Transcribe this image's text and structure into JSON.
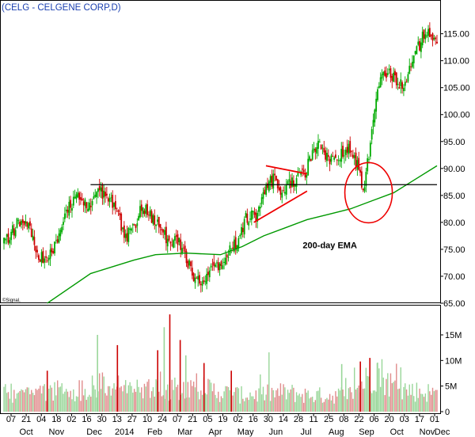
{
  "chart_data": [
    {
      "type": "candlestick",
      "title": "(CELG - CELGENE CORP,D)",
      "watermark": "©Signal,",
      "y_axis_side": "right",
      "ylim": [
        65,
        117
      ],
      "y_ticks": [
        "115.00",
        "110.00",
        "105.00",
        "100.00",
        "95.00",
        "90.00",
        "85.00",
        "80.00",
        "75.00",
        "70.00",
        "65.00"
      ],
      "y_tick_values": [
        115,
        110,
        105,
        100,
        95,
        90,
        85,
        80,
        75,
        70,
        65
      ],
      "x_ticks": [
        "07",
        "21",
        "04",
        "18",
        "02",
        "16",
        "30",
        "13",
        "27",
        "10",
        "24",
        "07",
        "21",
        "05",
        "19",
        "02",
        "16",
        "30",
        "14",
        "28",
        "11",
        "25",
        "08",
        "22",
        "06",
        "20",
        "03",
        "17",
        "01"
      ],
      "x_month_labels": [
        "Oct",
        "Nov",
        "Dec",
        "2014",
        "Feb",
        "Mar",
        "Apr",
        "May",
        "Jun",
        "Jul",
        "Aug",
        "Sep",
        "Oct",
        "Nov",
        "Dec"
      ],
      "price_path": [
        [
          0,
          76.5
        ],
        [
          0.03,
          79.5
        ],
        [
          0.06,
          79
        ],
        [
          0.08,
          74
        ],
        [
          0.1,
          73
        ],
        [
          0.12,
          76
        ],
        [
          0.15,
          82.5
        ],
        [
          0.17,
          85
        ],
        [
          0.19,
          83.5
        ],
        [
          0.21,
          84
        ],
        [
          0.22,
          86
        ],
        [
          0.24,
          84.5
        ],
        [
          0.27,
          80
        ],
        [
          0.28,
          77
        ],
        [
          0.3,
          79
        ],
        [
          0.32,
          83
        ],
        [
          0.34,
          81
        ],
        [
          0.36,
          79
        ],
        [
          0.38,
          76
        ],
        [
          0.4,
          77
        ],
        [
          0.42,
          73
        ],
        [
          0.44,
          70
        ],
        [
          0.46,
          69
        ],
        [
          0.48,
          71
        ],
        [
          0.5,
          72
        ],
        [
          0.52,
          74.5
        ],
        [
          0.54,
          77
        ],
        [
          0.56,
          81
        ],
        [
          0.58,
          81
        ],
        [
          0.6,
          86
        ],
        [
          0.62,
          88
        ],
        [
          0.64,
          86
        ],
        [
          0.66,
          87
        ],
        [
          0.68,
          88
        ],
        [
          0.7,
          90
        ],
        [
          0.72,
          94.5
        ],
        [
          0.74,
          93
        ],
        [
          0.76,
          91
        ],
        [
          0.78,
          92.5
        ],
        [
          0.8,
          94
        ],
        [
          0.82,
          90
        ],
        [
          0.83,
          84.5
        ],
        [
          0.84,
          91
        ],
        [
          0.86,
          104
        ],
        [
          0.88,
          108
        ],
        [
          0.9,
          107
        ],
        [
          0.92,
          105
        ],
        [
          0.94,
          109
        ],
        [
          0.96,
          113
        ],
        [
          0.975,
          115.5
        ],
        [
          0.985,
          114
        ]
      ],
      "volume_path": [
        [
          0,
          3.6
        ],
        [
          0.05,
          4
        ],
        [
          0.1,
          3.9
        ],
        [
          0.15,
          4.3
        ],
        [
          0.2,
          4.8
        ],
        [
          0.25,
          5.5
        ],
        [
          0.3,
          4.4
        ],
        [
          0.35,
          4.2
        ],
        [
          0.4,
          4.9
        ],
        [
          0.45,
          5.2
        ],
        [
          0.5,
          3.9
        ],
        [
          0.55,
          3.3
        ],
        [
          0.6,
          3.5
        ],
        [
          0.65,
          3.9
        ],
        [
          0.7,
          3.3
        ],
        [
          0.75,
          3.2
        ],
        [
          0.8,
          3.6
        ],
        [
          0.84,
          6.5
        ],
        [
          0.86,
          8.5
        ],
        [
          0.9,
          5
        ],
        [
          0.95,
          4.1
        ],
        [
          1,
          3.7
        ]
      ],
      "volume_spikes": [
        [
          0.1,
          8
        ],
        [
          0.216,
          15
        ],
        [
          0.262,
          13
        ],
        [
          0.355,
          12
        ],
        [
          0.37,
          16.5
        ],
        [
          0.383,
          19
        ],
        [
          0.407,
          14
        ],
        [
          0.42,
          11
        ],
        [
          0.462,
          9.5
        ],
        [
          0.525,
          8
        ],
        [
          0.78,
          9.3
        ],
        [
          0.823,
          9.8
        ],
        [
          0.845,
          10.5
        ],
        [
          0.862,
          9.5
        ]
      ],
      "ema_200": [
        [
          0.1,
          65
        ],
        [
          0.2,
          70.5
        ],
        [
          0.3,
          73
        ],
        [
          0.35,
          74
        ],
        [
          0.42,
          74.3
        ],
        [
          0.5,
          74
        ],
        [
          0.55,
          75.5
        ],
        [
          0.6,
          77.5
        ],
        [
          0.65,
          79
        ],
        [
          0.7,
          80.5
        ],
        [
          0.75,
          81.5
        ],
        [
          0.8,
          82.5
        ],
        [
          0.85,
          84
        ],
        [
          0.9,
          85.5
        ],
        [
          0.95,
          88
        ],
        [
          1,
          90.5
        ]
      ],
      "resistance_line": {
        "x": [
          0.2,
          1.0
        ],
        "y": 87
      },
      "triangle_upper": {
        "x": [
          0.605,
          0.7
        ],
        "y": [
          90.5,
          89
        ]
      },
      "triangle_lower": {
        "x": [
          0.577,
          0.7
        ],
        "y": [
          80,
          85.8
        ]
      },
      "circle_annotation": {
        "x": 0.842,
        "y": 85.5
      },
      "annotations": [
        {
          "text": "200-day EMA",
          "x": 0.69,
          "y": 75.2
        }
      ],
      "volume_ylim": [
        0,
        20
      ],
      "volume_ticks": [
        "15M",
        "10M",
        "5M",
        "0"
      ],
      "volume_tick_values": [
        15,
        10,
        5,
        0
      ],
      "colors": {
        "up": "#00aa00",
        "down": "#cc0000",
        "ema": "#009900",
        "resistance": "#000000",
        "trend": "#ee0000",
        "title": "#1a3fb0",
        "vol_up": "#99d699",
        "vol_down": "#e08c8c"
      }
    }
  ]
}
